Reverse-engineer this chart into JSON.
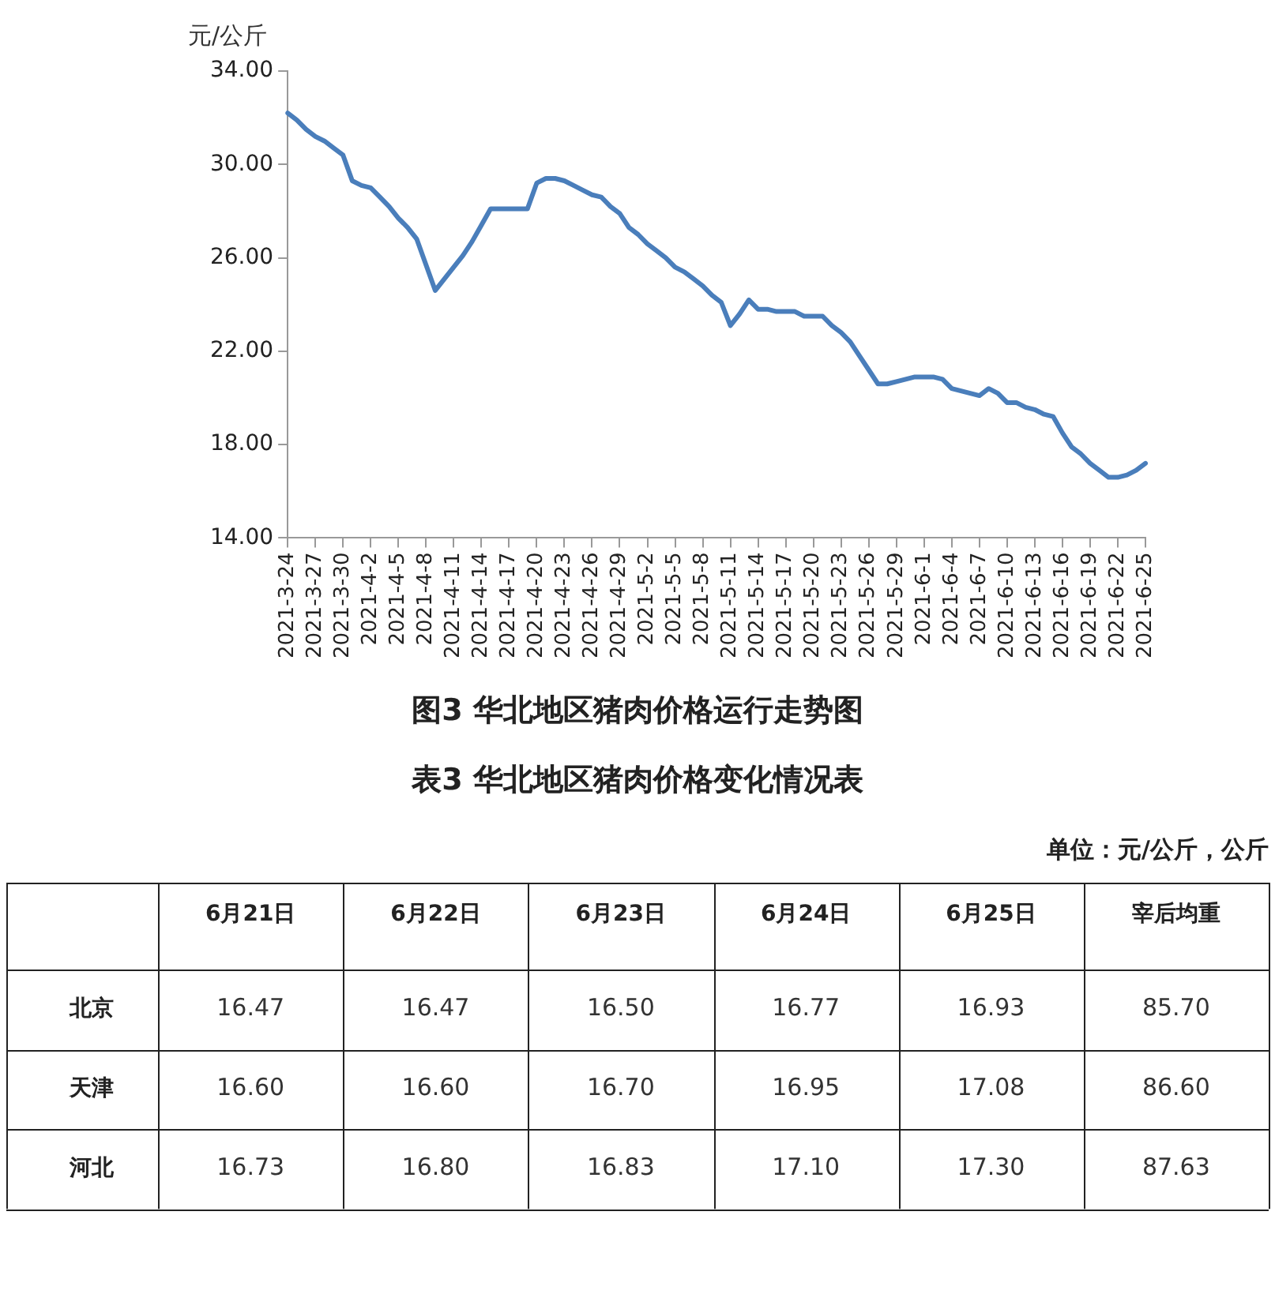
{
  "chart_data": [
    {
      "type": "line",
      "title": "图3 华北地区猪肉价格运行走势图",
      "ylabel": "元/公斤",
      "categories": [
        "2021-3-24",
        null,
        null,
        "2021-3-27",
        null,
        null,
        "2021-3-30",
        null,
        null,
        "2021-4-2",
        null,
        null,
        "2021-4-5",
        null,
        null,
        "2021-4-8",
        null,
        null,
        "2021-4-11",
        null,
        null,
        "2021-4-14",
        null,
        null,
        "2021-4-17",
        null,
        null,
        "2021-4-20",
        null,
        null,
        "2021-4-23",
        null,
        null,
        "2021-4-26",
        null,
        null,
        "2021-4-29",
        null,
        null,
        "2021-5-2",
        null,
        null,
        "2021-5-5",
        null,
        null,
        "2021-5-8",
        null,
        null,
        "2021-5-11",
        null,
        null,
        "2021-5-14",
        null,
        null,
        "2021-5-17",
        null,
        null,
        "2021-5-20",
        null,
        null,
        "2021-5-23",
        null,
        null,
        "2021-5-26",
        null,
        null,
        "2021-5-29",
        null,
        null,
        "2021-6-1",
        null,
        null,
        "2021-6-4",
        null,
        null,
        "2021-6-7",
        null,
        null,
        "2021-6-10",
        null,
        null,
        "2021-6-13",
        null,
        null,
        "2021-6-16",
        null,
        null,
        "2021-6-19",
        null,
        null,
        "2021-6-22",
        null,
        null,
        "2021-6-25"
      ],
      "series": [
        {
          "color": "#4a7ebb",
          "values": [
            32.2,
            31.9,
            31.5,
            31.2,
            31.0,
            30.7,
            30.4,
            29.3,
            29.1,
            29.0,
            28.6,
            28.2,
            27.7,
            27.3,
            26.8,
            25.7,
            24.6,
            25.1,
            25.6,
            26.1,
            26.7,
            27.4,
            28.1,
            28.1,
            28.1,
            28.1,
            28.1,
            29.2,
            29.4,
            29.4,
            29.3,
            29.1,
            28.9,
            28.7,
            28.6,
            28.2,
            27.9,
            27.3,
            27.0,
            26.6,
            26.3,
            26.0,
            25.6,
            25.4,
            25.1,
            24.8,
            24.4,
            24.1,
            23.1,
            23.6,
            24.2,
            23.8,
            23.8,
            23.7,
            23.7,
            23.7,
            23.5,
            23.5,
            23.5,
            23.1,
            22.8,
            22.4,
            21.8,
            21.2,
            20.6,
            20.6,
            20.7,
            20.8,
            20.9,
            20.9,
            20.9,
            20.8,
            20.4,
            20.3,
            20.2,
            20.1,
            20.4,
            20.2,
            19.8,
            19.8,
            19.6,
            19.5,
            19.3,
            19.2,
            18.5,
            17.9,
            17.6,
            17.2,
            16.9,
            16.6,
            16.6,
            16.7,
            16.9,
            17.2
          ]
        }
      ],
      "ylim": [
        14,
        34
      ],
      "yticks": [
        {
          "value": 14,
          "label": "14.00"
        },
        {
          "value": 18,
          "label": "18.00"
        },
        {
          "value": 22,
          "label": "22.00"
        },
        {
          "value": 26,
          "label": "26.00"
        },
        {
          "value": 30,
          "label": "30.00"
        },
        {
          "value": 34,
          "label": "34.00"
        }
      ],
      "marker": "none",
      "legend": false,
      "grid": false
    },
    {
      "type": "heatmap",
      "title": "表3 华北地区猪肉价格变化情况表",
      "annotations": [
        "单位：元/公斤，公斤"
      ],
      "categories": [
        "6月21日",
        "6月22日",
        "6月23日",
        "6月24日",
        "6月25日",
        "宰后均重"
      ],
      "y_categories": [
        "北京",
        "天津",
        "河北"
      ],
      "cells": [
        [
          16.47,
          16.47,
          16.5,
          16.77,
          16.93,
          85.7
        ],
        [
          16.6,
          16.6,
          16.7,
          16.95,
          17.08,
          86.6
        ],
        [
          16.73,
          16.8,
          16.83,
          17.1,
          17.3,
          87.63
        ]
      ],
      "cell_labels": [
        [
          "16.47",
          "16.47",
          "16.50",
          "16.77",
          "16.93",
          "85.70"
        ],
        [
          "16.60",
          "16.60",
          "16.70",
          "16.95",
          "17.08",
          "86.60"
        ],
        [
          "16.73",
          "16.80",
          "16.83",
          "17.10",
          "17.30",
          "87.63"
        ]
      ]
    }
  ]
}
